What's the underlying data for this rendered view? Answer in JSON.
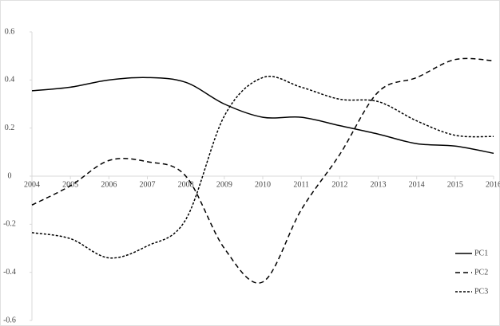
{
  "chart_data": {
    "type": "line",
    "x": [
      2004,
      2005,
      2006,
      2007,
      2008,
      2009,
      2010,
      2011,
      2012,
      2013,
      2014,
      2015,
      2016
    ],
    "series": [
      {
        "name": "PC1",
        "color": "#000000",
        "dash": "solid",
        "values": [
          0.355,
          0.37,
          0.4,
          0.41,
          0.39,
          0.3,
          0.245,
          0.245,
          0.21,
          0.175,
          0.135,
          0.125,
          0.095
        ]
      },
      {
        "name": "PC2",
        "color": "#000000",
        "dash": "long",
        "values": [
          -0.12,
          -0.04,
          0.065,
          0.06,
          0.0,
          -0.3,
          -0.44,
          -0.14,
          0.09,
          0.35,
          0.41,
          0.485,
          0.48
        ]
      },
      {
        "name": "PC3",
        "color": "#000000",
        "dash": "short",
        "values": [
          -0.235,
          -0.26,
          -0.34,
          -0.29,
          -0.18,
          0.25,
          0.41,
          0.37,
          0.32,
          0.31,
          0.23,
          0.17,
          0.165
        ]
      }
    ],
    "xlim": [
      2004,
      2016
    ],
    "ylim": [
      -0.6,
      0.6
    ],
    "yticks": [
      0.6,
      0.4,
      0.2,
      0,
      -0.2,
      -0.4,
      -0.6
    ],
    "legend": "bottom-right"
  }
}
